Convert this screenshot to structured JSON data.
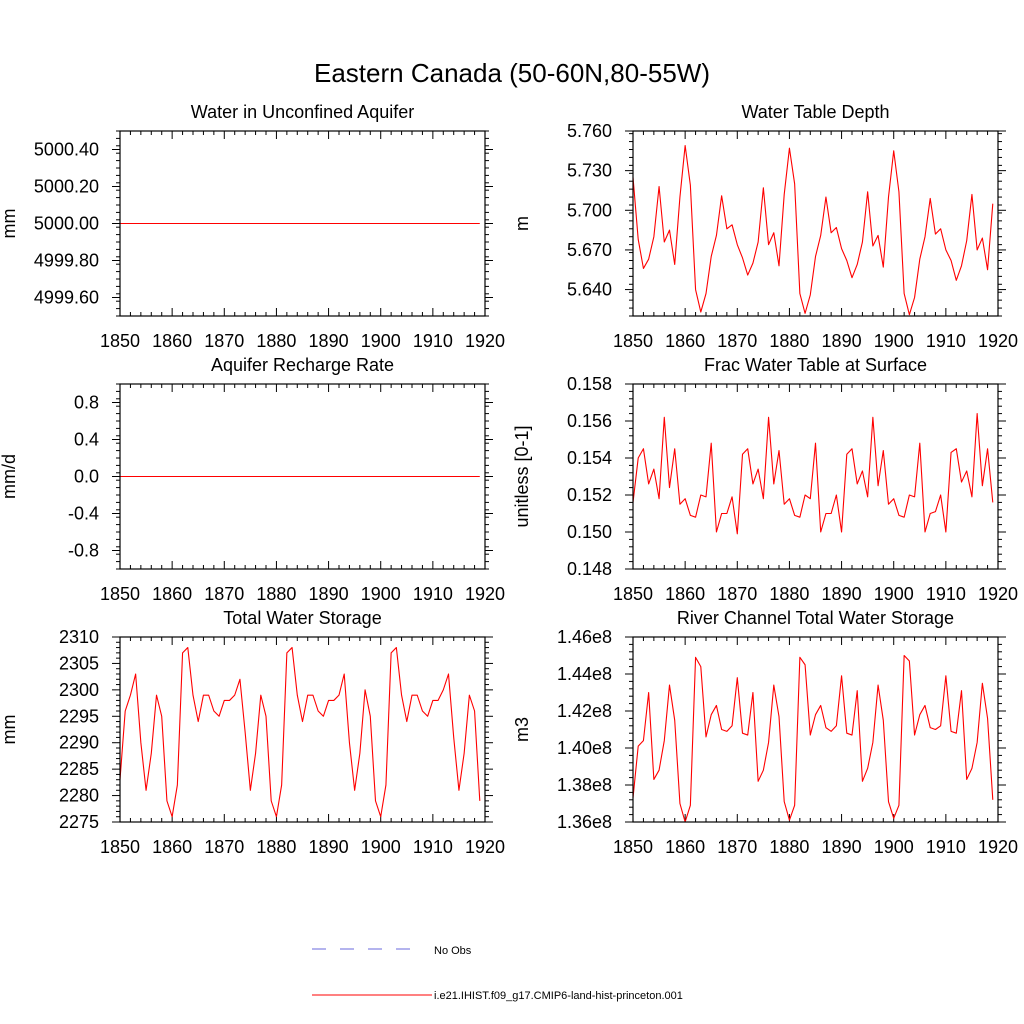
{
  "page": {
    "title": "Eastern Canada (50-60N,80-55W)"
  },
  "legend": {
    "entries": [
      {
        "label": "No Obs",
        "color": "#6a6adc",
        "style": "dashed"
      },
      {
        "label": "i.e21.IHIST.f09_g17.CMIP6-land-hist-princeton.001",
        "color": "#ff0000",
        "style": "solid"
      }
    ]
  },
  "chart_data": [
    {
      "type": "line",
      "title": "Water in Unconfined Aquifer",
      "ylabel": "mm",
      "xlim": [
        1850,
        1920
      ],
      "ylim": [
        4999.5,
        5000.5
      ],
      "x_ticks": [
        1850,
        1860,
        1870,
        1880,
        1890,
        1900,
        1910,
        1920
      ],
      "x_tick_labels": [
        "1850",
        "1860",
        "1870",
        "1880",
        "1890",
        "1900",
        "1910",
        "1920"
      ],
      "y_ticks": [
        4999.6,
        4999.8,
        5000.0,
        5000.2,
        5000.4
      ],
      "y_tick_labels": [
        "4999.60",
        "4999.80",
        "5000.00",
        "5000.20",
        "5000.40"
      ],
      "series": [
        {
          "color": "#ff0000",
          "x": [
            1850,
            1919
          ],
          "values": [
            5000.0,
            5000.0
          ]
        }
      ]
    },
    {
      "type": "line",
      "title": "Water Table Depth",
      "ylabel": "m",
      "xlim": [
        1850,
        1920
      ],
      "ylim": [
        5.62,
        5.76
      ],
      "x_ticks": [
        1850,
        1860,
        1870,
        1880,
        1890,
        1900,
        1910,
        1920
      ],
      "x_tick_labels": [
        "1850",
        "1860",
        "1870",
        "1880",
        "1890",
        "1900",
        "1910",
        "1920"
      ],
      "y_ticks": [
        5.64,
        5.67,
        5.7,
        5.73,
        5.76
      ],
      "y_tick_labels": [
        "5.640",
        "5.670",
        "5.700",
        "5.730",
        "5.760"
      ],
      "series": [
        {
          "color": "#ff0000",
          "x_start": 1850,
          "values": [
            5.725,
            5.678,
            5.656,
            5.663,
            5.68,
            5.718,
            5.676,
            5.685,
            5.659,
            5.71,
            5.749,
            5.719,
            5.64,
            5.623,
            5.637,
            5.665,
            5.681,
            5.711,
            5.686,
            5.689,
            5.674,
            5.664,
            5.651,
            5.66,
            5.676,
            5.717,
            5.674,
            5.683,
            5.658,
            5.712,
            5.747,
            5.72,
            5.637,
            5.622,
            5.636,
            5.665,
            5.681,
            5.71,
            5.683,
            5.687,
            5.671,
            5.662,
            5.649,
            5.659,
            5.676,
            5.714,
            5.673,
            5.681,
            5.657,
            5.71,
            5.745,
            5.714,
            5.637,
            5.621,
            5.634,
            5.663,
            5.68,
            5.709,
            5.682,
            5.686,
            5.67,
            5.662,
            5.647,
            5.658,
            5.677,
            5.712,
            5.67,
            5.679,
            5.655,
            5.705
          ]
        }
      ]
    },
    {
      "type": "line",
      "title": "Aquifer Recharge Rate",
      "ylabel": "mm/d",
      "xlim": [
        1850,
        1920
      ],
      "ylim": [
        -1.0,
        1.0
      ],
      "x_ticks": [
        1850,
        1860,
        1870,
        1880,
        1890,
        1900,
        1910,
        1920
      ],
      "x_tick_labels": [
        "1850",
        "1860",
        "1870",
        "1880",
        "1890",
        "1900",
        "1910",
        "1920"
      ],
      "y_ticks": [
        -0.8,
        -0.4,
        0.0,
        0.4,
        0.8
      ],
      "y_tick_labels": [
        "-0.8",
        "-0.4",
        "0.0",
        "0.4",
        "0.8"
      ],
      "series": [
        {
          "color": "#ff0000",
          "x": [
            1850,
            1919
          ],
          "values": [
            0.0,
            0.0
          ]
        }
      ]
    },
    {
      "type": "line",
      "title": "Frac Water Table at Surface",
      "ylabel": "unitless [0-1]",
      "xlim": [
        1850,
        1920
      ],
      "ylim": [
        0.148,
        0.158
      ],
      "x_ticks": [
        1850,
        1860,
        1870,
        1880,
        1890,
        1900,
        1910,
        1920
      ],
      "x_tick_labels": [
        "1850",
        "1860",
        "1870",
        "1880",
        "1890",
        "1900",
        "1910",
        "1920"
      ],
      "y_ticks": [
        0.148,
        0.15,
        0.152,
        0.154,
        0.156,
        0.158
      ],
      "y_tick_labels": [
        "0.148",
        "0.150",
        "0.152",
        "0.154",
        "0.156",
        "0.158"
      ],
      "series": [
        {
          "color": "#ff0000",
          "x_start": 1850,
          "values": [
            0.1516,
            0.154,
            0.1545,
            0.1526,
            0.1534,
            0.1518,
            0.1562,
            0.1524,
            0.1545,
            0.1515,
            0.1518,
            0.1509,
            0.1508,
            0.152,
            0.1519,
            0.1548,
            0.15,
            0.151,
            0.151,
            0.1519,
            0.1499,
            0.1542,
            0.1545,
            0.1526,
            0.1534,
            0.1518,
            0.1562,
            0.1526,
            0.1544,
            0.1515,
            0.1518,
            0.1509,
            0.1508,
            0.152,
            0.1518,
            0.1548,
            0.15,
            0.151,
            0.151,
            0.152,
            0.15,
            0.1542,
            0.1545,
            0.1526,
            0.1533,
            0.1519,
            0.1562,
            0.1525,
            0.1544,
            0.1515,
            0.1518,
            0.1509,
            0.1508,
            0.152,
            0.1519,
            0.1548,
            0.15,
            0.151,
            0.1511,
            0.152,
            0.15,
            0.1543,
            0.1545,
            0.1527,
            0.1533,
            0.1519,
            0.1564,
            0.1525,
            0.1545,
            0.1516
          ]
        }
      ]
    },
    {
      "type": "line",
      "title": "Total Water Storage",
      "ylabel": "mm",
      "xlim": [
        1850,
        1920
      ],
      "ylim": [
        2275,
        2310
      ],
      "x_ticks": [
        1850,
        1860,
        1870,
        1880,
        1890,
        1900,
        1910,
        1920
      ],
      "x_tick_labels": [
        "1850",
        "1860",
        "1870",
        "1880",
        "1890",
        "1900",
        "1910",
        "1920"
      ],
      "y_ticks": [
        2275,
        2280,
        2285,
        2290,
        2295,
        2300,
        2305,
        2310
      ],
      "y_tick_labels": [
        "2275",
        "2280",
        "2285",
        "2290",
        "2295",
        "2300",
        "2305",
        "2310"
      ],
      "series": [
        {
          "color": "#ff0000",
          "x_start": 1850,
          "values": [
            2283,
            2296,
            2299,
            2303,
            2290,
            2281,
            2288,
            2299,
            2295,
            2279,
            2276,
            2282,
            2307,
            2308,
            2299,
            2294,
            2299,
            2299,
            2296,
            2295,
            2298,
            2298,
            2299,
            2302,
            2292,
            2281,
            2288,
            2299,
            2295,
            2279,
            2276,
            2282,
            2307,
            2308,
            2299,
            2294,
            2299,
            2299,
            2296,
            2295,
            2298,
            2298,
            2299,
            2303,
            2290,
            2281,
            2288,
            2300,
            2295,
            2279,
            2276,
            2282,
            2307,
            2308,
            2299,
            2294,
            2299,
            2299,
            2296,
            2295,
            2298,
            2298,
            2300,
            2303,
            2291,
            2281,
            2288,
            2299,
            2296,
            2279
          ]
        }
      ]
    },
    {
      "type": "line",
      "title": "River Channel Total Water Storage",
      "ylabel": "m3",
      "xlim": [
        1850,
        1920
      ],
      "ylim": [
        136000000,
        146000000
      ],
      "x_ticks": [
        1850,
        1860,
        1870,
        1880,
        1890,
        1900,
        1910,
        1920
      ],
      "x_tick_labels": [
        "1850",
        "1860",
        "1870",
        "1880",
        "1890",
        "1900",
        "1910",
        "1920"
      ],
      "y_ticks": [
        136000000,
        138000000,
        140000000,
        142000000,
        144000000,
        146000000
      ],
      "y_tick_labels": [
        "1.36e8",
        "1.38e8",
        "1.40e8",
        "1.42e8",
        "1.44e8",
        "1.46e8"
      ],
      "series": [
        {
          "color": "#ff0000",
          "x_start": 1850,
          "values": [
            137300000,
            140100000,
            140400000,
            143000000,
            138300000,
            138800000,
            140400000,
            143400000,
            141500000,
            137000000,
            136000000,
            136900000,
            144900000,
            144400000,
            140600000,
            141800000,
            142300000,
            141000000,
            140900000,
            141200000,
            143800000,
            140800000,
            140700000,
            143000000,
            138200000,
            138800000,
            140300000,
            143400000,
            141700000,
            137100000,
            136100000,
            136900000,
            144900000,
            144500000,
            140700000,
            141800000,
            142300000,
            141100000,
            140900000,
            141200000,
            143900000,
            140800000,
            140700000,
            143100000,
            138200000,
            138900000,
            140300000,
            143400000,
            141500000,
            137100000,
            136200000,
            136900000,
            145000000,
            144700000,
            140700000,
            141800000,
            142300000,
            141100000,
            141000000,
            141200000,
            143900000,
            140900000,
            140800000,
            143100000,
            138300000,
            138900000,
            140300000,
            143500000,
            141600000,
            137200000
          ]
        }
      ]
    }
  ]
}
